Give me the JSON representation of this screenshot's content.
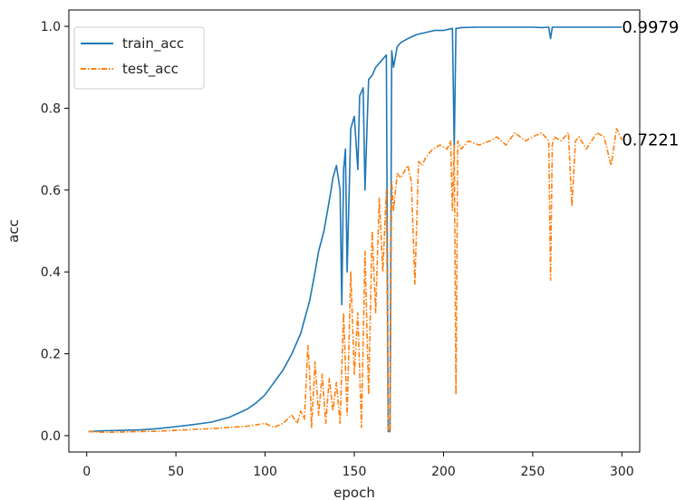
{
  "chart_data": {
    "type": "line",
    "xlabel": "epoch",
    "ylabel": "acc",
    "xlim": [
      -10,
      310
    ],
    "ylim": [
      -0.04,
      1.04
    ],
    "xticks": [
      0,
      50,
      100,
      150,
      200,
      250,
      300
    ],
    "xtick_labels": [
      "0",
      "50",
      "100",
      "150",
      "200",
      "250",
      "300"
    ],
    "yticks": [
      0.0,
      0.2,
      0.4,
      0.6,
      0.8,
      1.0
    ],
    "ytick_labels": [
      "0.0",
      "0.2",
      "0.4",
      "0.6",
      "0.8",
      "1.0"
    ],
    "grid": false,
    "legend_position": "top-left",
    "series": [
      {
        "name": "train_acc",
        "color": "#1f77b4",
        "dash": "solid",
        "x": [
          1,
          10,
          20,
          30,
          40,
          50,
          60,
          70,
          80,
          90,
          95,
          100,
          105,
          110,
          115,
          120,
          125,
          128,
          130,
          133,
          135,
          137,
          138,
          140,
          142,
          143,
          144,
          145,
          146,
          148,
          150,
          152,
          153,
          155,
          156,
          158,
          160,
          162,
          164,
          166,
          168,
          169,
          170,
          171,
          172,
          174,
          176,
          180,
          185,
          190,
          195,
          200,
          205,
          206,
          207,
          208,
          210,
          220,
          230,
          240,
          250,
          255,
          259,
          260,
          261,
          265,
          270,
          280,
          290,
          300
        ],
        "y": [
          0.01,
          0.012,
          0.013,
          0.014,
          0.017,
          0.022,
          0.027,
          0.033,
          0.045,
          0.065,
          0.08,
          0.1,
          0.13,
          0.16,
          0.2,
          0.25,
          0.33,
          0.4,
          0.45,
          0.5,
          0.55,
          0.6,
          0.63,
          0.66,
          0.6,
          0.32,
          0.65,
          0.7,
          0.4,
          0.75,
          0.78,
          0.65,
          0.83,
          0.85,
          0.6,
          0.87,
          0.88,
          0.9,
          0.91,
          0.92,
          0.93,
          0.01,
          0.01,
          0.94,
          0.9,
          0.95,
          0.96,
          0.97,
          0.98,
          0.985,
          0.99,
          0.99,
          0.995,
          0.7,
          0.995,
          0.995,
          0.997,
          0.998,
          0.998,
          0.998,
          0.998,
          0.997,
          0.998,
          0.97,
          0.998,
          0.998,
          0.998,
          0.998,
          0.998,
          0.9979
        ]
      },
      {
        "name": "test_acc",
        "color": "#ff7f0e",
        "dash": "dashdot",
        "x": [
          1,
          10,
          20,
          30,
          40,
          50,
          60,
          70,
          80,
          90,
          100,
          105,
          110,
          115,
          118,
          120,
          122,
          124,
          125,
          126,
          128,
          130,
          132,
          134,
          136,
          138,
          140,
          142,
          144,
          146,
          148,
          150,
          152,
          154,
          156,
          158,
          160,
          162,
          164,
          166,
          168,
          169,
          170,
          171,
          172,
          174,
          176,
          180,
          182,
          184,
          186,
          188,
          190,
          194,
          198,
          202,
          204,
          205,
          206,
          207,
          208,
          210,
          214,
          220,
          226,
          230,
          235,
          240,
          246,
          250,
          255,
          259,
          260,
          261,
          262,
          266,
          270,
          272,
          274,
          276,
          280,
          286,
          290,
          294,
          297,
          300
        ],
        "y": [
          0.01,
          0.008,
          0.009,
          0.01,
          0.011,
          0.013,
          0.015,
          0.017,
          0.02,
          0.023,
          0.03,
          0.02,
          0.03,
          0.05,
          0.03,
          0.06,
          0.04,
          0.22,
          0.15,
          0.02,
          0.18,
          0.05,
          0.15,
          0.03,
          0.14,
          0.06,
          0.13,
          0.03,
          0.3,
          0.05,
          0.4,
          0.15,
          0.3,
          0.02,
          0.45,
          0.1,
          0.5,
          0.3,
          0.58,
          0.4,
          0.6,
          0.01,
          0.01,
          0.62,
          0.55,
          0.64,
          0.63,
          0.66,
          0.62,
          0.37,
          0.67,
          0.66,
          0.68,
          0.7,
          0.71,
          0.7,
          0.72,
          0.55,
          0.71,
          0.1,
          0.72,
          0.7,
          0.72,
          0.71,
          0.72,
          0.73,
          0.71,
          0.74,
          0.72,
          0.73,
          0.74,
          0.72,
          0.38,
          0.71,
          0.73,
          0.72,
          0.74,
          0.56,
          0.72,
          0.73,
          0.7,
          0.74,
          0.73,
          0.66,
          0.75,
          0.7221
        ]
      }
    ],
    "annotations": [
      {
        "text": "0.9979",
        "x": 300,
        "y": 0.9979
      },
      {
        "text": "0.7221",
        "x": 300,
        "y": 0.7221
      }
    ]
  }
}
